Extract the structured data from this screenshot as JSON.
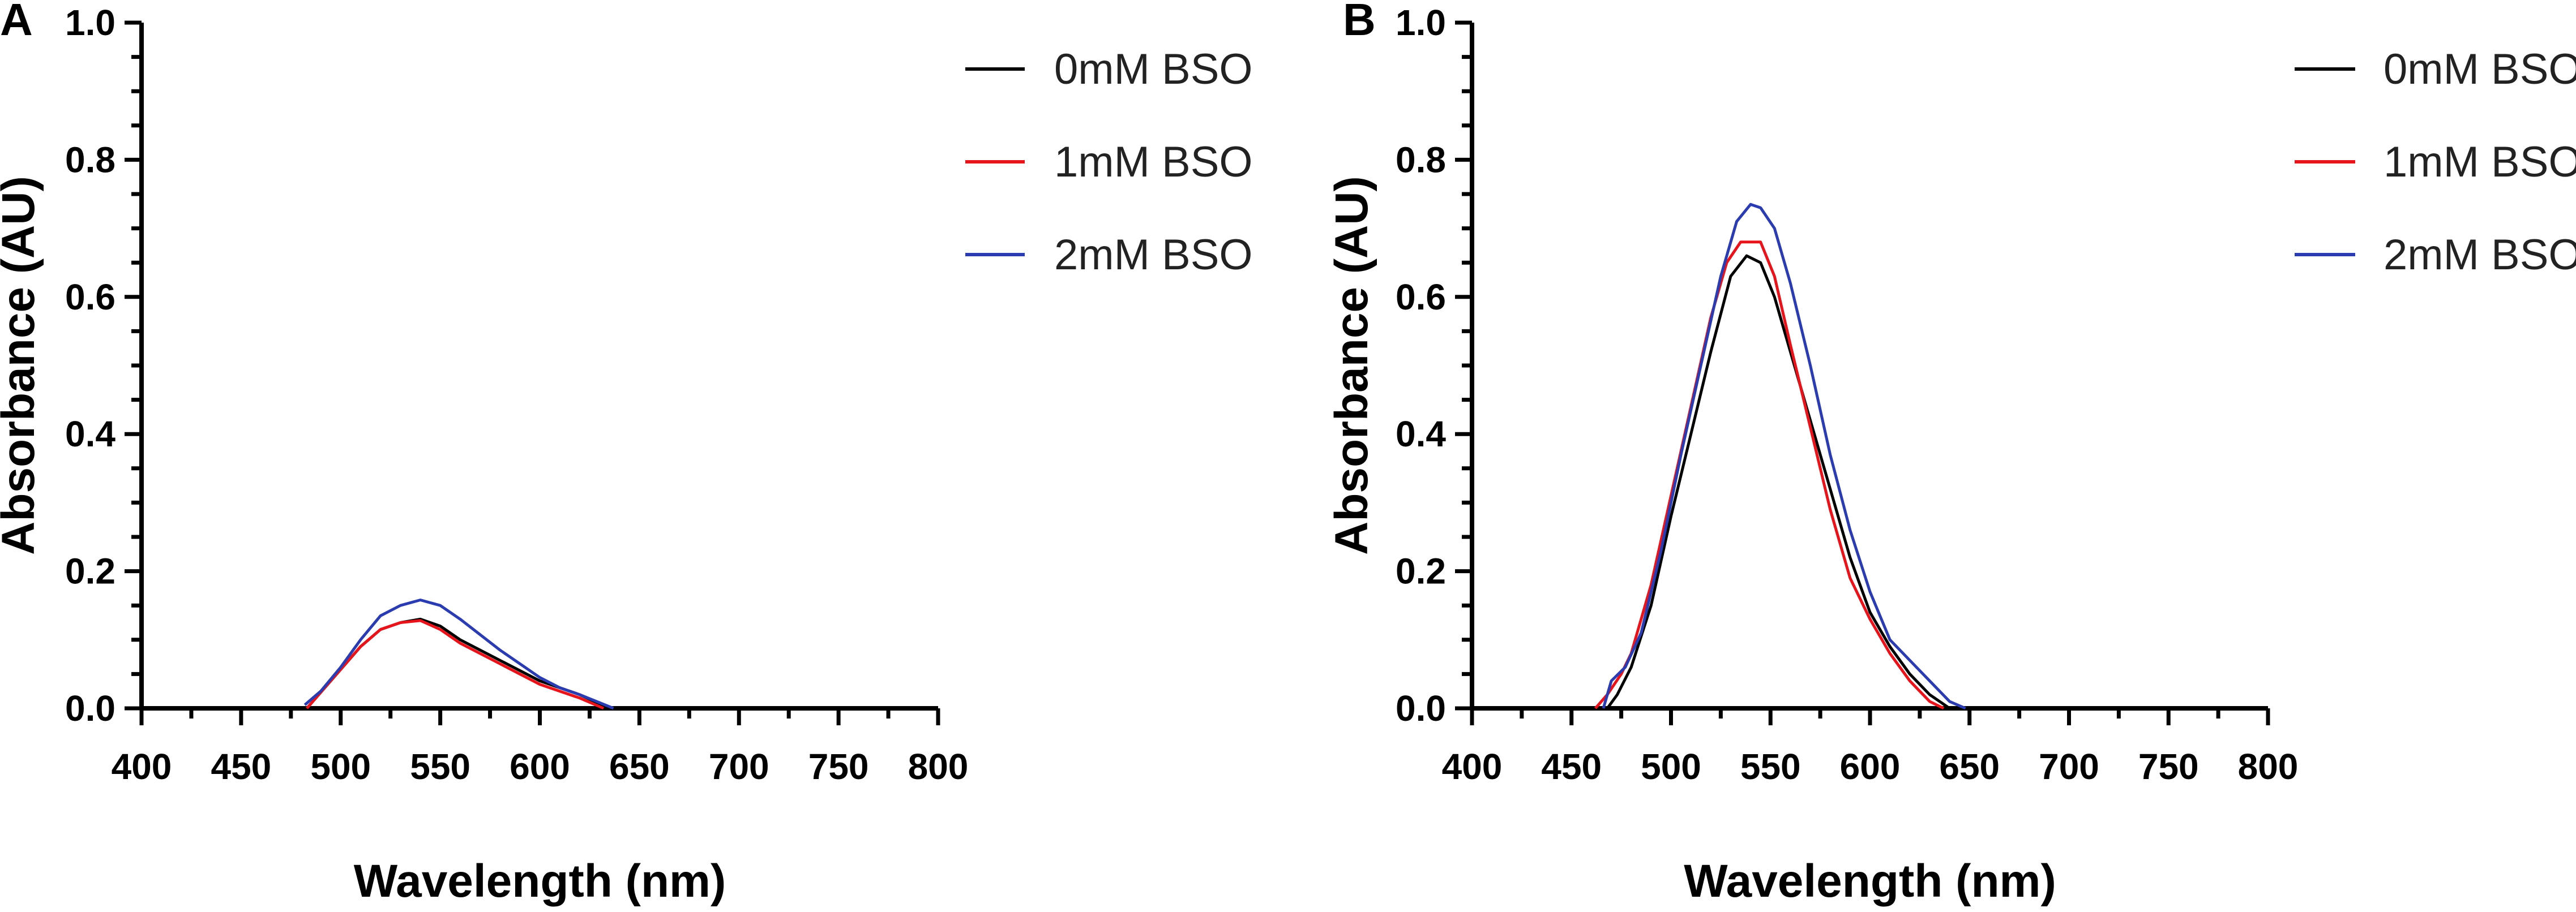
{
  "chart_data": [
    {
      "type": "line",
      "panel_label": "A",
      "title": "",
      "xlabel": "Wavelength (nm)",
      "ylabel": "Absorbance (AU)",
      "xlim": [
        400,
        800
      ],
      "ylim": [
        0.0,
        1.0
      ],
      "x_ticks": [
        "400",
        "450",
        "500",
        "550",
        "600",
        "650",
        "700",
        "750",
        "800"
      ],
      "y_ticks": [
        "0.0",
        "0.2",
        "0.4",
        "0.6",
        "0.8",
        "1.0"
      ],
      "legend_position": "top-right",
      "series": [
        {
          "name": "0mM BSO",
          "color": "#000000",
          "points": [
            [
              483,
              0.0
            ],
            [
              495,
              0.04
            ],
            [
              510,
              0.09
            ],
            [
              520,
              0.115
            ],
            [
              530,
              0.125
            ],
            [
              540,
              0.13
            ],
            [
              550,
              0.12
            ],
            [
              560,
              0.1
            ],
            [
              580,
              0.07
            ],
            [
              600,
              0.04
            ],
            [
              610,
              0.03
            ],
            [
              620,
              0.02
            ],
            [
              635,
              0.0
            ]
          ]
        },
        {
          "name": "1mM BSO",
          "color": "#e8141c",
          "points": [
            [
              483,
              0.0
            ],
            [
              495,
              0.04
            ],
            [
              510,
              0.09
            ],
            [
              520,
              0.115
            ],
            [
              530,
              0.125
            ],
            [
              540,
              0.128
            ],
            [
              550,
              0.115
            ],
            [
              560,
              0.095
            ],
            [
              580,
              0.065
            ],
            [
              600,
              0.035
            ],
            [
              610,
              0.025
            ],
            [
              620,
              0.015
            ],
            [
              632,
              0.0
            ]
          ]
        },
        {
          "name": "2mM BSO",
          "color": "#2b3bb0",
          "points": [
            [
              482,
              0.005
            ],
            [
              490,
              0.025
            ],
            [
              500,
              0.06
            ],
            [
              510,
              0.1
            ],
            [
              520,
              0.135
            ],
            [
              530,
              0.15
            ],
            [
              540,
              0.158
            ],
            [
              550,
              0.15
            ],
            [
              560,
              0.13
            ],
            [
              580,
              0.085
            ],
            [
              600,
              0.045
            ],
            [
              610,
              0.03
            ],
            [
              620,
              0.02
            ],
            [
              637,
              0.0
            ]
          ]
        }
      ]
    },
    {
      "type": "line",
      "panel_label": "B",
      "title": "",
      "xlabel": "Wavelength (nm)",
      "ylabel": "Absorbance (AU)",
      "xlim": [
        400,
        800
      ],
      "ylim": [
        0.0,
        1.0
      ],
      "x_ticks": [
        "400",
        "450",
        "500",
        "550",
        "600",
        "650",
        "700",
        "750",
        "800"
      ],
      "y_ticks": [
        "0.0",
        "0.2",
        "0.4",
        "0.6",
        "0.8",
        "1.0"
      ],
      "legend_position": "top-right",
      "series": [
        {
          "name": "0mM BSO",
          "color": "#000000",
          "points": [
            [
              468,
              0.0
            ],
            [
              473,
              0.02
            ],
            [
              480,
              0.06
            ],
            [
              490,
              0.15
            ],
            [
              500,
              0.28
            ],
            [
              510,
              0.4
            ],
            [
              520,
              0.52
            ],
            [
              530,
              0.63
            ],
            [
              538,
              0.66
            ],
            [
              545,
              0.65
            ],
            [
              552,
              0.6
            ],
            [
              560,
              0.52
            ],
            [
              570,
              0.42
            ],
            [
              580,
              0.32
            ],
            [
              590,
              0.22
            ],
            [
              600,
              0.14
            ],
            [
              610,
              0.09
            ],
            [
              620,
              0.05
            ],
            [
              630,
              0.02
            ],
            [
              640,
              0.0
            ]
          ]
        },
        {
          "name": "1mM BSO",
          "color": "#e8141c",
          "points": [
            [
              462,
              0.0
            ],
            [
              468,
              0.02
            ],
            [
              475,
              0.05
            ],
            [
              480,
              0.08
            ],
            [
              490,
              0.18
            ],
            [
              500,
              0.31
            ],
            [
              510,
              0.44
            ],
            [
              520,
              0.57
            ],
            [
              528,
              0.65
            ],
            [
              535,
              0.68
            ],
            [
              545,
              0.68
            ],
            [
              552,
              0.63
            ],
            [
              560,
              0.53
            ],
            [
              570,
              0.41
            ],
            [
              580,
              0.29
            ],
            [
              590,
              0.19
            ],
            [
              600,
              0.13
            ],
            [
              610,
              0.08
            ],
            [
              620,
              0.04
            ],
            [
              630,
              0.01
            ],
            [
              637,
              0.0
            ]
          ]
        },
        {
          "name": "2mM BSO",
          "color": "#2b3bb0",
          "points": [
            [
              466,
              0.0
            ],
            [
              470,
              0.04
            ],
            [
              477,
              0.06
            ],
            [
              485,
              0.11
            ],
            [
              495,
              0.23
            ],
            [
              505,
              0.37
            ],
            [
              515,
              0.5
            ],
            [
              525,
              0.63
            ],
            [
              533,
              0.71
            ],
            [
              540,
              0.735
            ],
            [
              545,
              0.73
            ],
            [
              552,
              0.7
            ],
            [
              560,
              0.62
            ],
            [
              570,
              0.5
            ],
            [
              580,
              0.37
            ],
            [
              590,
              0.26
            ],
            [
              600,
              0.17
            ],
            [
              610,
              0.1
            ],
            [
              620,
              0.07
            ],
            [
              630,
              0.04
            ],
            [
              640,
              0.01
            ],
            [
              648,
              0.0
            ]
          ]
        }
      ]
    }
  ]
}
